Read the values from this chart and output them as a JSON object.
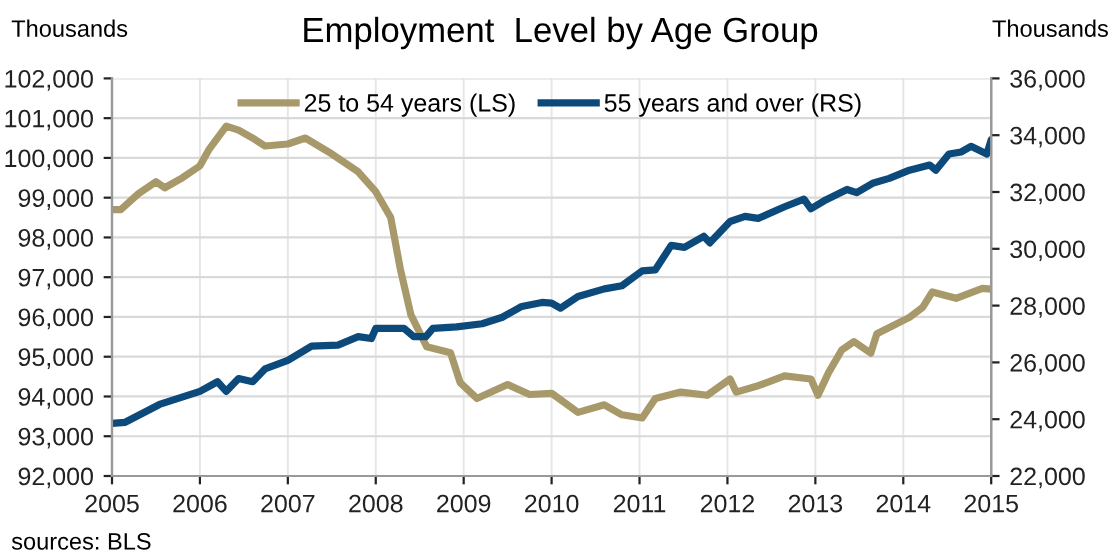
{
  "chart_data": {
    "type": "line",
    "title": "Employment  Level by Age Group",
    "ylabel": "Thousands",
    "y2label": "Thousands",
    "annotations": [
      "sources: BLS"
    ],
    "xlim": [
      2005,
      2015
    ],
    "xticks": [
      2005,
      2006,
      2007,
      2008,
      2009,
      2010,
      2011,
      2012,
      2013,
      2014,
      2015
    ],
    "ylim": [
      92000,
      102000
    ],
    "yticks": [
      {
        "value": 92000,
        "label": "92,000"
      },
      {
        "value": 93000,
        "label": "93,000"
      },
      {
        "value": 94000,
        "label": "94,000"
      },
      {
        "value": 95000,
        "label": "95,000"
      },
      {
        "value": 96000,
        "label": "96,000"
      },
      {
        "value": 97000,
        "label": "97,000"
      },
      {
        "value": 98000,
        "label": "98,000"
      },
      {
        "value": 99000,
        "label": "99,000"
      },
      {
        "value": 100000,
        "label": "100,000"
      },
      {
        "value": 101000,
        "label": "101,000"
      },
      {
        "value": 102000,
        "label": "102,000"
      }
    ],
    "y2lim": [
      22000,
      36000
    ],
    "y2ticks": [
      {
        "value": 22000,
        "label": "22,000"
      },
      {
        "value": 24000,
        "label": "24,000"
      },
      {
        "value": 26000,
        "label": "26,000"
      },
      {
        "value": 28000,
        "label": "28,000"
      },
      {
        "value": 30000,
        "label": "30,000"
      },
      {
        "value": 32000,
        "label": "32,000"
      },
      {
        "value": 34000,
        "label": "34,000"
      },
      {
        "value": 36000,
        "label": "36,000"
      }
    ],
    "grid": true,
    "legend": "top",
    "line_style": "solid",
    "marker": "none",
    "series": [
      {
        "name": "25 to 54 years (LS)",
        "color": "#a8996a",
        "x": [
          2005.0,
          2005.1,
          2005.3,
          2005.5,
          2005.6,
          2005.8,
          2006.0,
          2006.1,
          2006.3,
          2006.44,
          2006.6,
          2006.74,
          2007.0,
          2007.2,
          2007.5,
          2007.8,
          2008.0,
          2008.17,
          2008.28,
          2008.4,
          2008.58,
          2008.85,
          2008.96,
          2009.15,
          2009.5,
          2009.75,
          2010.0,
          2010.3,
          2010.6,
          2010.8,
          2011.03,
          2011.18,
          2011.47,
          2011.77,
          2012.03,
          2012.1,
          2012.35,
          2012.65,
          2012.95,
          2013.03,
          2013.15,
          2013.3,
          2013.44,
          2013.63,
          2013.7,
          2014.07,
          2014.22,
          2014.33,
          2014.6,
          2014.9,
          2015.0
        ],
        "values": [
          98700,
          98700,
          99100,
          99400,
          99250,
          99500,
          99800,
          100200,
          100800,
          100700,
          100500,
          100300,
          100350,
          100500,
          100100,
          99650,
          99150,
          98500,
          97200,
          96050,
          95250,
          95100,
          94350,
          93950,
          94300,
          94050,
          94080,
          93600,
          93790,
          93540,
          93460,
          93950,
          94110,
          94030,
          94440,
          94110,
          94270,
          94520,
          94440,
          94030,
          94600,
          95170,
          95380,
          95090,
          95580,
          95990,
          96240,
          96630,
          96470,
          96720,
          96700
        ]
      },
      {
        "name": "55 years and over (RS)",
        "color": "#0d4a7c",
        "axis": "y2",
        "x": [
          2005.0,
          2005.15,
          2005.54,
          2006.0,
          2006.2,
          2006.3,
          2006.44,
          2006.6,
          2006.74,
          2007.0,
          2007.27,
          2007.57,
          2007.8,
          2007.95,
          2008.0,
          2008.32,
          2008.43,
          2008.57,
          2008.65,
          2008.92,
          2009.21,
          2009.44,
          2009.66,
          2009.89,
          2010.0,
          2010.1,
          2010.3,
          2010.6,
          2010.8,
          2011.03,
          2011.18,
          2011.36,
          2011.51,
          2011.73,
          2011.8,
          2012.03,
          2012.2,
          2012.35,
          2012.65,
          2012.87,
          2012.95,
          2013.1,
          2013.36,
          2013.47,
          2013.66,
          2013.84,
          2014.07,
          2014.3,
          2014.37,
          2014.52,
          2014.66,
          2014.77,
          2014.95,
          2015.0
        ],
        "values": [
          23850,
          23890,
          24520,
          24980,
          25320,
          24980,
          25430,
          25320,
          25770,
          26070,
          26570,
          26610,
          26910,
          26840,
          27200,
          27200,
          26910,
          26910,
          27200,
          27250,
          27360,
          27590,
          27970,
          28110,
          28090,
          27910,
          28320,
          28590,
          28700,
          29220,
          29260,
          30120,
          30050,
          30440,
          30210,
          30960,
          31140,
          31070,
          31480,
          31750,
          31410,
          31690,
          32090,
          31980,
          32320,
          32480,
          32770,
          32950,
          32770,
          33340,
          33410,
          33610,
          33340,
          33840
        ]
      }
    ]
  }
}
